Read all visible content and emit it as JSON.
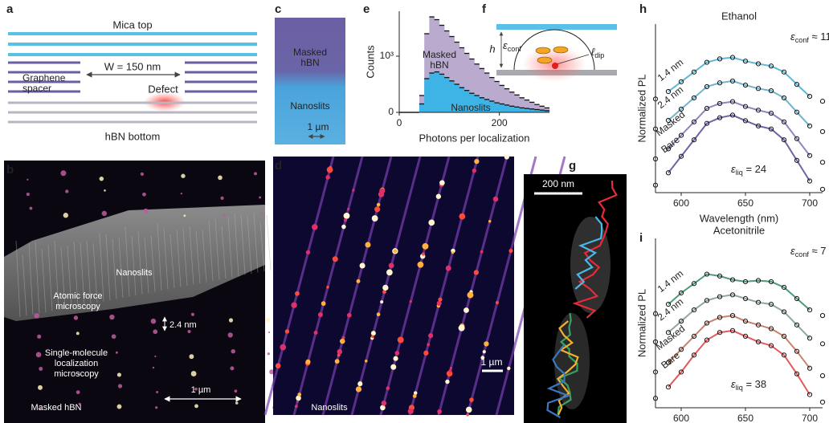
{
  "panel_labels": [
    "a",
    "b",
    "c",
    "d",
    "e",
    "f",
    "g",
    "h",
    "i"
  ],
  "a": {
    "mica_top": "Mica top",
    "width": "W = 150 nm",
    "spacer": [
      "Graphene",
      "spacer"
    ],
    "defect": "Defect",
    "hbn_bottom": "hBN bottom"
  },
  "b": {
    "nanoslits": "Nanoslits",
    "afm": [
      "Atomic force",
      "microscopy"
    ],
    "height": "2.4 nm",
    "smlm": [
      "Single-molecule",
      "localization",
      "microscopy"
    ],
    "scale": "1 µm",
    "masked": "Masked  hBN"
  },
  "c": {
    "masked": [
      "Masked",
      "hBN"
    ],
    "nanoslits": "Nanoslits",
    "scale": "1 µm"
  },
  "d": {
    "scale": "1 µm",
    "nanoslits": "Nanoslits"
  },
  "f": {
    "h": "h",
    "conf": {
      "symbol": "ε",
      "sub": "conf"
    },
    "dip": {
      "symbol": "ℓ",
      "sub": "dip"
    }
  },
  "g": {
    "scale": "200 nm"
  },
  "chart_data": [
    {
      "type": "histogram",
      "xlabel": "Photons per localization",
      "ylabel": "Counts",
      "bins": [
        0,
        10,
        20,
        30,
        40,
        50,
        60,
        70,
        80,
        90,
        100,
        110,
        120,
        130,
        140,
        150,
        160,
        170,
        180,
        190,
        200,
        210,
        220,
        230,
        240,
        250,
        260,
        270,
        280,
        290,
        300
      ],
      "series": [
        {
          "name": "Masked hBN",
          "color": "#b9aace",
          "values": [
            0,
            0,
            0,
            0,
            300,
            1400,
            1700,
            1650,
            1550,
            1450,
            1350,
            1250,
            1150,
            1050,
            950,
            860,
            780,
            700,
            620,
            550,
            480,
            420,
            360,
            310,
            260,
            220,
            180,
            140,
            110,
            80
          ]
        },
        {
          "name": "Nanoslits",
          "color": "#3db4e5",
          "values": [
            0,
            0,
            0,
            0,
            150,
            600,
            700,
            720,
            680,
            620,
            560,
            500,
            440,
            390,
            340,
            300,
            260,
            230,
            200,
            170,
            150,
            130,
            110,
            95,
            80,
            70,
            60,
            50,
            40,
            30
          ]
        }
      ],
      "xlim": [
        0,
        300
      ],
      "xticks": [
        0,
        200
      ],
      "ylim": [
        0,
        1800
      ],
      "yticks": [
        0,
        {
          "value": 1000,
          "label": "10³"
        }
      ]
    },
    {
      "type": "line",
      "title": "Ethanol",
      "xlabel": "Wavelength (nm)",
      "ylabel": "Normalized PL",
      "x": [
        580,
        590,
        600,
        610,
        620,
        630,
        640,
        650,
        660,
        670,
        680,
        690,
        700,
        710
      ],
      "series": [
        {
          "name": "1.4 nm",
          "color": "#5fb8d6",
          "values": [
            2.5,
            2.7,
            2.96,
            3.22,
            3.48,
            3.57,
            3.61,
            3.51,
            3.44,
            3.38,
            3.22,
            2.89,
            2.57,
            2.44
          ],
          "fit": [
            null,
            2.7,
            2.96,
            3.22,
            3.48,
            3.57,
            3.61,
            3.51,
            3.44,
            3.38,
            3.22,
            2.89,
            2.57,
            null
          ]
        },
        {
          "name": "2.4 nm",
          "color": "#6fb3cf",
          "values": [
            1.7,
            1.93,
            2.23,
            2.53,
            2.83,
            2.93,
            2.98,
            2.87,
            2.78,
            2.72,
            2.53,
            2.15,
            1.78,
            1.63
          ],
          "fit": [
            null,
            1.93,
            2.23,
            2.53,
            2.83,
            2.93,
            2.98,
            2.87,
            2.78,
            2.72,
            2.53,
            2.15,
            1.78,
            null
          ]
        },
        {
          "name": "Masked",
          "color": "#8f85bd",
          "values": [
            0.9,
            1.17,
            1.53,
            1.89,
            2.25,
            2.38,
            2.43,
            2.3,
            2.2,
            2.12,
            1.89,
            1.44,
            0.99,
            0.81
          ],
          "fit": [
            null,
            1.17,
            1.53,
            1.89,
            2.25,
            2.38,
            2.43,
            2.3,
            2.2,
            2.12,
            1.89,
            1.44,
            0.99,
            null
          ]
        },
        {
          "name": "Bare",
          "color": "#6f63a8",
          "values": [
            0.2,
            0.53,
            0.97,
            1.41,
            1.85,
            2.0,
            2.07,
            1.92,
            1.78,
            1.7,
            1.41,
            0.86,
            0.31,
            0.09
          ],
          "fit": [
            null,
            0.53,
            0.97,
            1.41,
            1.85,
            2.0,
            2.07,
            1.92,
            1.78,
            1.7,
            1.41,
            0.86,
            0.31,
            null
          ]
        }
      ],
      "annotations": [
        {
          "symbol": "ε",
          "sub": "conf",
          "text": " ≈ 11"
        },
        {
          "symbol": "ε",
          "sub": "liq",
          "text": " = 24"
        }
      ],
      "xlim": [
        580,
        710
      ],
      "xticks": [
        600,
        650,
        700
      ],
      "ylim": [
        0,
        4.5
      ]
    },
    {
      "type": "line",
      "title": "Acetonitrile",
      "xlabel": "Wavelength (nm)",
      "ylabel": "Normalized PL",
      "x": [
        580,
        590,
        600,
        610,
        620,
        630,
        640,
        650,
        660,
        670,
        680,
        690,
        700,
        710
      ],
      "series": [
        {
          "name": "1.4 nm",
          "color": "#4f9a78",
          "values": [
            2.5,
            2.75,
            3.05,
            3.3,
            3.55,
            3.5,
            3.4,
            3.35,
            3.38,
            3.35,
            3.2,
            2.9,
            2.6,
            2.45
          ],
          "fit": [
            null,
            2.75,
            3.05,
            3.3,
            3.55,
            3.5,
            3.4,
            3.35,
            3.38,
            3.35,
            3.2,
            2.9,
            2.6,
            null
          ]
        },
        {
          "name": "2.4 nm",
          "color": "#8fa79d",
          "values": [
            1.75,
            2.0,
            2.3,
            2.6,
            2.85,
            2.95,
            3.0,
            2.9,
            2.8,
            2.75,
            2.55,
            2.2,
            1.85,
            1.7
          ],
          "fit": [
            null,
            2.0,
            2.3,
            2.6,
            2.85,
            2.95,
            3.0,
            2.9,
            2.8,
            2.75,
            2.55,
            2.2,
            1.85,
            null
          ]
        },
        {
          "name": "Masked",
          "color": "#c9826a",
          "values": [
            0.95,
            1.2,
            1.55,
            1.9,
            2.25,
            2.4,
            2.45,
            2.3,
            2.2,
            2.1,
            1.9,
            1.5,
            1.05,
            0.85
          ],
          "fit": [
            null,
            1.2,
            1.55,
            1.9,
            2.25,
            2.4,
            2.45,
            2.3,
            2.2,
            2.1,
            1.9,
            1.5,
            1.05,
            null
          ]
        },
        {
          "name": "Bare",
          "color": "#e05a5a",
          "values": [
            0.25,
            0.55,
            0.95,
            1.4,
            1.8,
            2.0,
            2.05,
            1.9,
            1.75,
            1.65,
            1.4,
            0.9,
            0.35,
            0.15
          ],
          "fit": [
            null,
            0.55,
            0.95,
            1.4,
            1.8,
            2.0,
            2.05,
            1.9,
            1.75,
            1.65,
            1.4,
            0.9,
            0.35,
            null
          ]
        }
      ],
      "annotations": [
        {
          "symbol": "ε",
          "sub": "conf",
          "text": " ≈ 7"
        },
        {
          "symbol": "ε",
          "sub": "liq",
          "text": " = 38"
        }
      ],
      "xlim": [
        580,
        710
      ],
      "xticks": [
        600,
        650,
        700
      ],
      "ylim": [
        0,
        4.5
      ]
    }
  ]
}
